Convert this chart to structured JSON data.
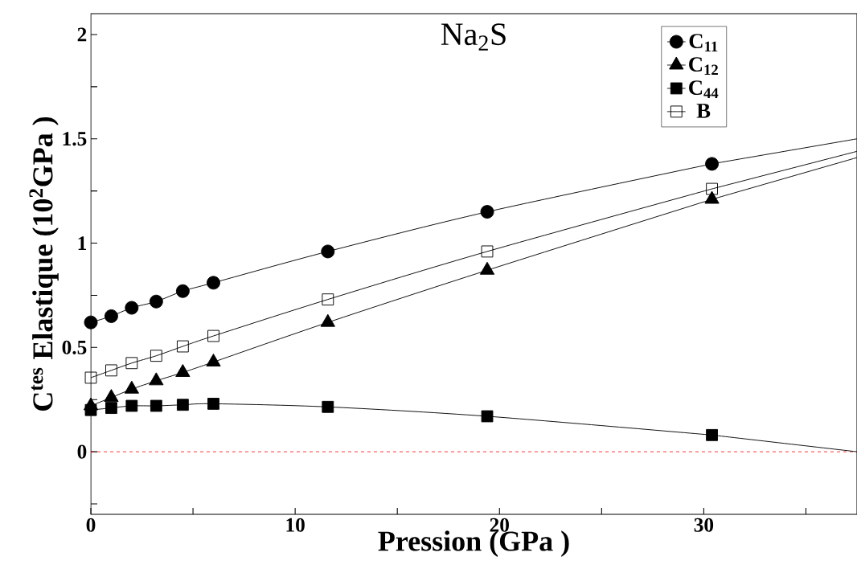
{
  "chart_data": {
    "type": "line",
    "title": "Na$_{2}$S",
    "xlabel": "Pression (GPa )",
    "ylabel": "C$^{tes}$ Elastique (10$^{2}$GPa )",
    "xlim": [
      0,
      37.5
    ],
    "ylim": [
      -0.3,
      2.1
    ],
    "xticks": [
      0,
      {
        "value": 5,
        "label": null
      },
      10,
      {
        "value": 15,
        "label": null
      },
      20,
      {
        "value": 25,
        "label": null
      },
      30,
      {
        "value": 35,
        "label": null
      }
    ],
    "yticks": [
      {
        "value": -0.25,
        "label": null
      },
      0,
      {
        "value": 0.25,
        "label": null
      },
      0.5,
      {
        "value": 0.75,
        "label": null
      },
      1,
      {
        "value": 1.25,
        "label": null
      },
      1.5,
      {
        "value": 1.75,
        "label": null
      },
      2
    ],
    "legend": "top right",
    "grid": false,
    "ref_lines": [
      {
        "axis": "y",
        "value": 0,
        "color": "#ff0000",
        "line_style": "dashed"
      }
    ],
    "series": [
      {
        "name": "C$_{11}$",
        "color": "#000000",
        "marker": "circle",
        "x": [
          0,
          1,
          2,
          3.2,
          4.5,
          6,
          11.6,
          19.4,
          30.4
        ],
        "values": [
          0.62,
          0.65,
          0.69,
          0.72,
          0.77,
          0.81,
          0.96,
          1.15,
          1.38
        ]
      },
      {
        "name": "C$_{12}$",
        "color": "#000000",
        "marker": "triangle",
        "x": [
          0,
          1,
          2,
          3.2,
          4.5,
          6,
          11.6,
          19.4,
          30.4
        ],
        "values": [
          0.22,
          0.26,
          0.3,
          0.34,
          0.38,
          0.43,
          0.62,
          0.87,
          1.21
        ]
      },
      {
        "name": "C$_{44}$",
        "color": "#000000",
        "marker": "square",
        "x": [
          0,
          1,
          2,
          3.2,
          4.5,
          6,
          11.6,
          19.4,
          30.4
        ],
        "values": [
          0.2,
          0.21,
          0.22,
          0.22,
          0.225,
          0.23,
          0.215,
          0.17,
          0.08
        ]
      },
      {
        "name": "B",
        "color": "#000000",
        "marker": "square-open",
        "x": [
          0,
          1,
          2,
          3.2,
          4.5,
          6,
          11.6,
          19.4,
          30.4
        ],
        "values": [
          0.355,
          0.39,
          0.425,
          0.46,
          0.505,
          0.555,
          0.73,
          0.96,
          1.26
        ]
      },
      {
        "type": "line",
        "color": "#000000",
        "marker": "none",
        "x": [
          30.4,
          37.5
        ],
        "values": [
          1.38,
          1.5
        ]
      },
      {
        "type": "line",
        "color": "#000000",
        "marker": "none",
        "x": [
          30.4,
          37.5
        ],
        "values": [
          1.21,
          1.41
        ]
      },
      {
        "type": "line",
        "color": "#000000",
        "marker": "none",
        "x": [
          30.4,
          37.5
        ],
        "values": [
          0.08,
          0.0
        ]
      },
      {
        "type": "line",
        "color": "#000000",
        "marker": "none",
        "x": [
          30.4,
          37.5
        ],
        "values": [
          1.26,
          1.44
        ]
      }
    ]
  }
}
